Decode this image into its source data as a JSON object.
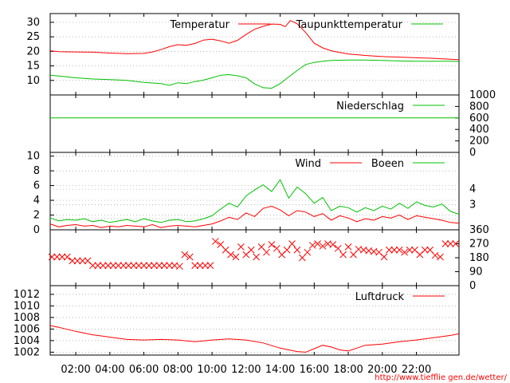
{
  "colors": {
    "red": "#ff0000",
    "green": "#00c000",
    "grid": "#a0a0a0",
    "axis": "#000000"
  },
  "source_url": "http://www.tiefflie gen.de/wetter/",
  "chart_data": [
    {
      "type": "line",
      "id": "temperature",
      "x_unit": "hours",
      "xlim": [
        0.5,
        24.5
      ],
      "ylim": [
        5,
        33
      ],
      "yticks": [
        10,
        15,
        20,
        25,
        30
      ],
      "grid": true,
      "legend": "top",
      "series": [
        {
          "name": "Temperatur",
          "color": "red",
          "x": [
            0.5,
            1,
            2,
            3,
            4,
            5,
            6,
            6.5,
            7,
            7.5,
            8,
            8.5,
            9,
            9.5,
            10,
            10.5,
            11,
            11.5,
            12,
            12.5,
            13,
            13.5,
            14,
            14.3,
            14.6,
            15,
            15.5,
            16,
            16.5,
            17,
            17.5,
            18,
            19,
            20,
            21,
            22,
            23,
            24,
            24.5
          ],
          "y": [
            20.2,
            19.9,
            19.8,
            19.7,
            19.4,
            19.2,
            19.3,
            19.8,
            20.6,
            21.6,
            22.3,
            22.1,
            22.7,
            23.9,
            24.2,
            23.6,
            22.8,
            23.8,
            25.8,
            27.6,
            28.6,
            29.4,
            29.3,
            28.5,
            30.6,
            29.5,
            26.5,
            22.8,
            21.2,
            20.2,
            19.6,
            19.1,
            18.6,
            18.2,
            18.0,
            17.8,
            17.6,
            17.3,
            17.1
          ]
        },
        {
          "name": "Taupunkttemperatur",
          "color": "green",
          "x": [
            0.5,
            1,
            2,
            3,
            4,
            5,
            6,
            7,
            7.5,
            8,
            8.5,
            9,
            9.5,
            10,
            10.5,
            11,
            11.5,
            12,
            12.5,
            13,
            13.5,
            14,
            14.5,
            15,
            15.5,
            16,
            16.5,
            17,
            18,
            19,
            20,
            21,
            22,
            23,
            24,
            24.5
          ],
          "y": [
            11.8,
            11.5,
            10.9,
            10.5,
            10.3,
            10.0,
            9.3,
            8.9,
            8.3,
            9.2,
            8.9,
            9.6,
            10.1,
            10.9,
            11.8,
            12.0,
            11.6,
            10.9,
            8.8,
            7.5,
            7.3,
            8.9,
            11.2,
            13.4,
            15.5,
            16.2,
            16.6,
            16.9,
            17.0,
            17.0,
            16.9,
            16.7,
            16.6,
            16.6,
            16.6,
            16.5
          ]
        }
      ]
    },
    {
      "type": "line",
      "id": "precipitation",
      "xlim": [
        0.5,
        24.5
      ],
      "ylim": [
        0,
        1000
      ],
      "yticks_right": [
        0,
        200,
        400,
        600,
        800,
        1000
      ],
      "series": [
        {
          "name": "Niederschlag",
          "color": "green",
          "x": [
            0.5,
            24.5
          ],
          "y": [
            600,
            600
          ]
        }
      ]
    },
    {
      "type": "line",
      "id": "wind",
      "xlim": [
        0.5,
        24.5
      ],
      "ylim": [
        0,
        10.5
      ],
      "yticks": [
        0,
        2,
        4,
        6,
        8,
        10
      ],
      "beaufort_ticks_right": [
        {
          "label": "3",
          "value": 3.4
        },
        {
          "label": "4",
          "value": 5.5
        }
      ],
      "beaufort_lines": [
        1.5,
        3.4,
        5.5
      ],
      "series": [
        {
          "name": "Wind",
          "color": "red",
          "x": [
            0.5,
            1,
            1.5,
            2,
            2.5,
            3,
            3.5,
            4,
            4.5,
            5,
            5.5,
            6,
            6.5,
            7,
            7.5,
            8,
            8.5,
            9,
            9.5,
            10,
            10.5,
            11,
            11.5,
            12,
            12.5,
            13,
            13.5,
            14,
            14.5,
            15,
            15.5,
            16,
            16.5,
            17,
            17.5,
            18,
            18.5,
            19,
            19.5,
            20,
            20.5,
            21,
            21.5,
            22,
            22.5,
            23,
            23.5,
            24,
            24.5
          ],
          "y": [
            0.8,
            0.4,
            0.6,
            0.7,
            0.5,
            0.6,
            0.3,
            0.5,
            0.4,
            0.6,
            0.5,
            0.4,
            0.7,
            0.3,
            0.5,
            0.6,
            0.5,
            0.4,
            0.6,
            0.8,
            1.2,
            1.7,
            1.4,
            2.3,
            1.8,
            2.9,
            3.2,
            2.7,
            1.9,
            2.6,
            2.4,
            1.8,
            2.2,
            1.3,
            1.9,
            1.6,
            1.1,
            1.5,
            1.3,
            1.8,
            1.6,
            2.0,
            1.4,
            1.9,
            1.7,
            1.5,
            1.3,
            1.0,
            0.9
          ]
        },
        {
          "name": "Boeen",
          "color": "green",
          "x": [
            0.5,
            1,
            1.5,
            2,
            2.5,
            3,
            3.5,
            4,
            4.5,
            5,
            5.5,
            6,
            6.5,
            7,
            7.5,
            8,
            8.5,
            9,
            9.5,
            10,
            10.5,
            11,
            11.5,
            12,
            12.5,
            13,
            13.5,
            14,
            14.5,
            15,
            15.5,
            16,
            16.5,
            17,
            17.5,
            18,
            18.5,
            19,
            19.5,
            20,
            20.5,
            21,
            21.5,
            22,
            22.5,
            23,
            23.5,
            24,
            24.5
          ],
          "y": [
            1.6,
            1.2,
            1.4,
            1.3,
            1.5,
            1.1,
            1.3,
            1.0,
            1.2,
            1.4,
            1.1,
            1.5,
            1.2,
            1.0,
            1.3,
            1.4,
            1.1,
            1.2,
            1.5,
            1.9,
            2.8,
            3.6,
            3.1,
            4.6,
            5.4,
            6.1,
            5.2,
            6.8,
            4.3,
            5.8,
            4.9,
            3.6,
            4.4,
            2.6,
            3.2,
            3.0,
            2.4,
            3.0,
            2.6,
            3.2,
            2.8,
            3.6,
            2.9,
            3.8,
            3.3,
            3.1,
            3.5,
            2.5,
            2.1
          ]
        }
      ]
    },
    {
      "type": "scatter",
      "id": "wind_direction",
      "xlim": [
        0.5,
        24.5
      ],
      "ylim": [
        0,
        360
      ],
      "yticks_right": [
        0,
        90,
        180,
        270,
        360
      ],
      "series": [
        {
          "name": "",
          "color": "red",
          "marker": "x",
          "x": [
            0.6,
            0.9,
            1.2,
            1.5,
            1.8,
            2.1,
            2.4,
            2.7,
            3.0,
            3.3,
            3.6,
            3.9,
            4.2,
            4.5,
            4.8,
            5.1,
            5.4,
            5.7,
            6.0,
            6.3,
            6.6,
            6.9,
            7.2,
            7.5,
            7.8,
            8.1,
            8.4,
            8.7,
            9.0,
            9.3,
            9.6,
            9.9,
            10.2,
            10.5,
            10.8,
            11.1,
            11.4,
            11.7,
            12.0,
            12.3,
            12.6,
            12.9,
            13.2,
            13.5,
            13.8,
            14.1,
            14.4,
            14.7,
            15.0,
            15.3,
            15.6,
            15.9,
            16.2,
            16.5,
            16.8,
            17.1,
            17.4,
            17.7,
            18.0,
            18.3,
            18.6,
            18.9,
            19.2,
            19.5,
            19.8,
            20.1,
            20.4,
            20.7,
            21.0,
            21.3,
            21.6,
            21.9,
            22.2,
            22.5,
            22.8,
            23.1,
            23.4,
            23.7,
            24.0,
            24.3
          ],
          "y": [
            185,
            185,
            185,
            185,
            160,
            160,
            160,
            160,
            130,
            130,
            130,
            130,
            130,
            130,
            130,
            130,
            130,
            130,
            130,
            130,
            130,
            130,
            130,
            130,
            130,
            125,
            200,
            185,
            130,
            130,
            130,
            130,
            285,
            265,
            230,
            200,
            185,
            250,
            200,
            230,
            185,
            250,
            215,
            265,
            240,
            200,
            230,
            270,
            230,
            180,
            215,
            260,
            270,
            255,
            270,
            265,
            240,
            200,
            250,
            200,
            235,
            230,
            225,
            220,
            215,
            185,
            230,
            230,
            230,
            215,
            230,
            230,
            200,
            230,
            230,
            195,
            185,
            270,
            270,
            270
          ]
        }
      ]
    },
    {
      "type": "line",
      "id": "pressure",
      "xlim": [
        0.5,
        24.5
      ],
      "ylim": [
        1001.5,
        1013.5
      ],
      "yticks": [
        1002,
        1004,
        1006,
        1008,
        1010,
        1012
      ],
      "xticks": [
        "02:00",
        "04:00",
        "06:00",
        "08:00",
        "10:00",
        "12:00",
        "14:00",
        "16:00",
        "18:00",
        "20:00",
        "22:00"
      ],
      "xtick_values": [
        2,
        4,
        6,
        8,
        10,
        12,
        14,
        16,
        18,
        20,
        22
      ],
      "series": [
        {
          "name": "Luftdruck",
          "color": "red",
          "x": [
            0.5,
            1,
            2,
            3,
            4,
            5,
            6,
            7,
            8,
            9,
            10,
            11,
            12,
            13,
            14,
            15,
            15.5,
            16,
            16.5,
            17,
            17.5,
            18,
            19,
            20,
            21,
            22,
            23,
            24,
            24.5
          ],
          "y": [
            1006.6,
            1006.3,
            1005.6,
            1005.0,
            1004.6,
            1004.2,
            1004.1,
            1004.2,
            1004.1,
            1003.8,
            1004.1,
            1004.3,
            1004.1,
            1003.6,
            1002.7,
            1002.1,
            1002.0,
            1002.6,
            1003.2,
            1002.9,
            1002.4,
            1002.2,
            1003.2,
            1003.4,
            1003.8,
            1004.1,
            1004.5,
            1004.9,
            1005.2
          ]
        }
      ]
    }
  ]
}
